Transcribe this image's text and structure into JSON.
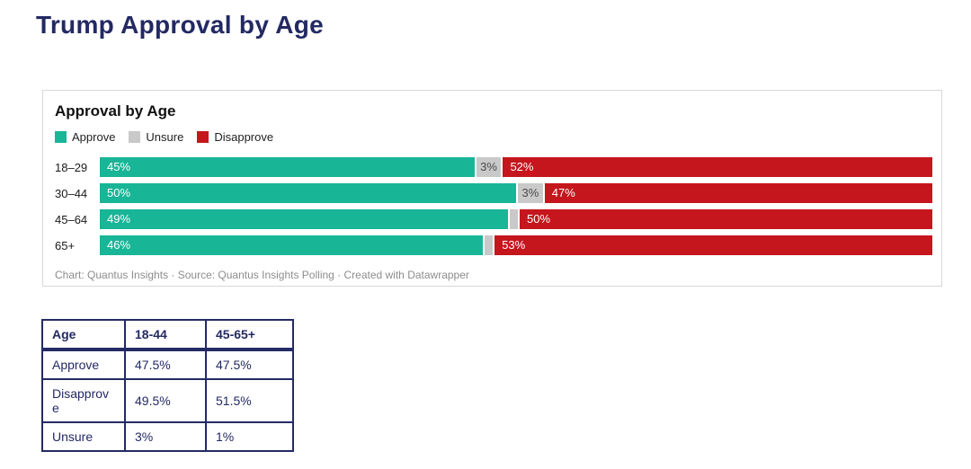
{
  "page": {
    "title": "Trump Approval by Age"
  },
  "colors": {
    "navy": "#232963",
    "approve": "#18b597",
    "unsure": "#c9c9c9",
    "disapprove": "#c5161d",
    "card_border": "#d8d8d8",
    "footer_text": "#8d8d8d"
  },
  "chart_card": {
    "title": "Approval by Age",
    "legend": [
      {
        "label": "Approve",
        "color": "#18b597"
      },
      {
        "label": "Unsure",
        "color": "#c9c9c9"
      },
      {
        "label": "Disapprove",
        "color": "#c5161d"
      }
    ],
    "footer": "Chart: Quantus Insights  · Source: Quantus Insights Polling  · Created with Datawrapper"
  },
  "chart_data": {
    "type": "bar",
    "stacked": true,
    "orientation": "horizontal",
    "title": "Approval by Age",
    "categories": [
      "18–29",
      "30–44",
      "45–64",
      "65+"
    ],
    "series": [
      {
        "name": "Approve",
        "color": "#18b597",
        "label_color": "#ffffff",
        "values": [
          45,
          50,
          49,
          46
        ]
      },
      {
        "name": "Unsure",
        "color": "#c9c9c9",
        "label_color": "#4a4a4a",
        "values": [
          3,
          3,
          1,
          1
        ]
      },
      {
        "name": "Disapprove",
        "color": "#c5161d",
        "label_color": "#ffffff",
        "values": [
          52,
          47,
          50,
          53
        ]
      }
    ],
    "value_labels": [
      [
        "45%",
        "3%",
        "52%"
      ],
      [
        "50%",
        "3%",
        "47%"
      ],
      [
        "49%",
        "",
        "50%"
      ],
      [
        "46%",
        "",
        "53%"
      ]
    ],
    "xlim": [
      0,
      100
    ],
    "legend_position": "top-left",
    "grid": false
  },
  "table": {
    "headers": [
      "Age",
      "18-44",
      "45-65+"
    ],
    "rows": [
      [
        "Approve",
        "47.5%",
        "47.5%"
      ],
      [
        "Disapprove",
        "49.5%",
        "51.5%"
      ],
      [
        "Unsure",
        "3%",
        "1%"
      ]
    ]
  }
}
